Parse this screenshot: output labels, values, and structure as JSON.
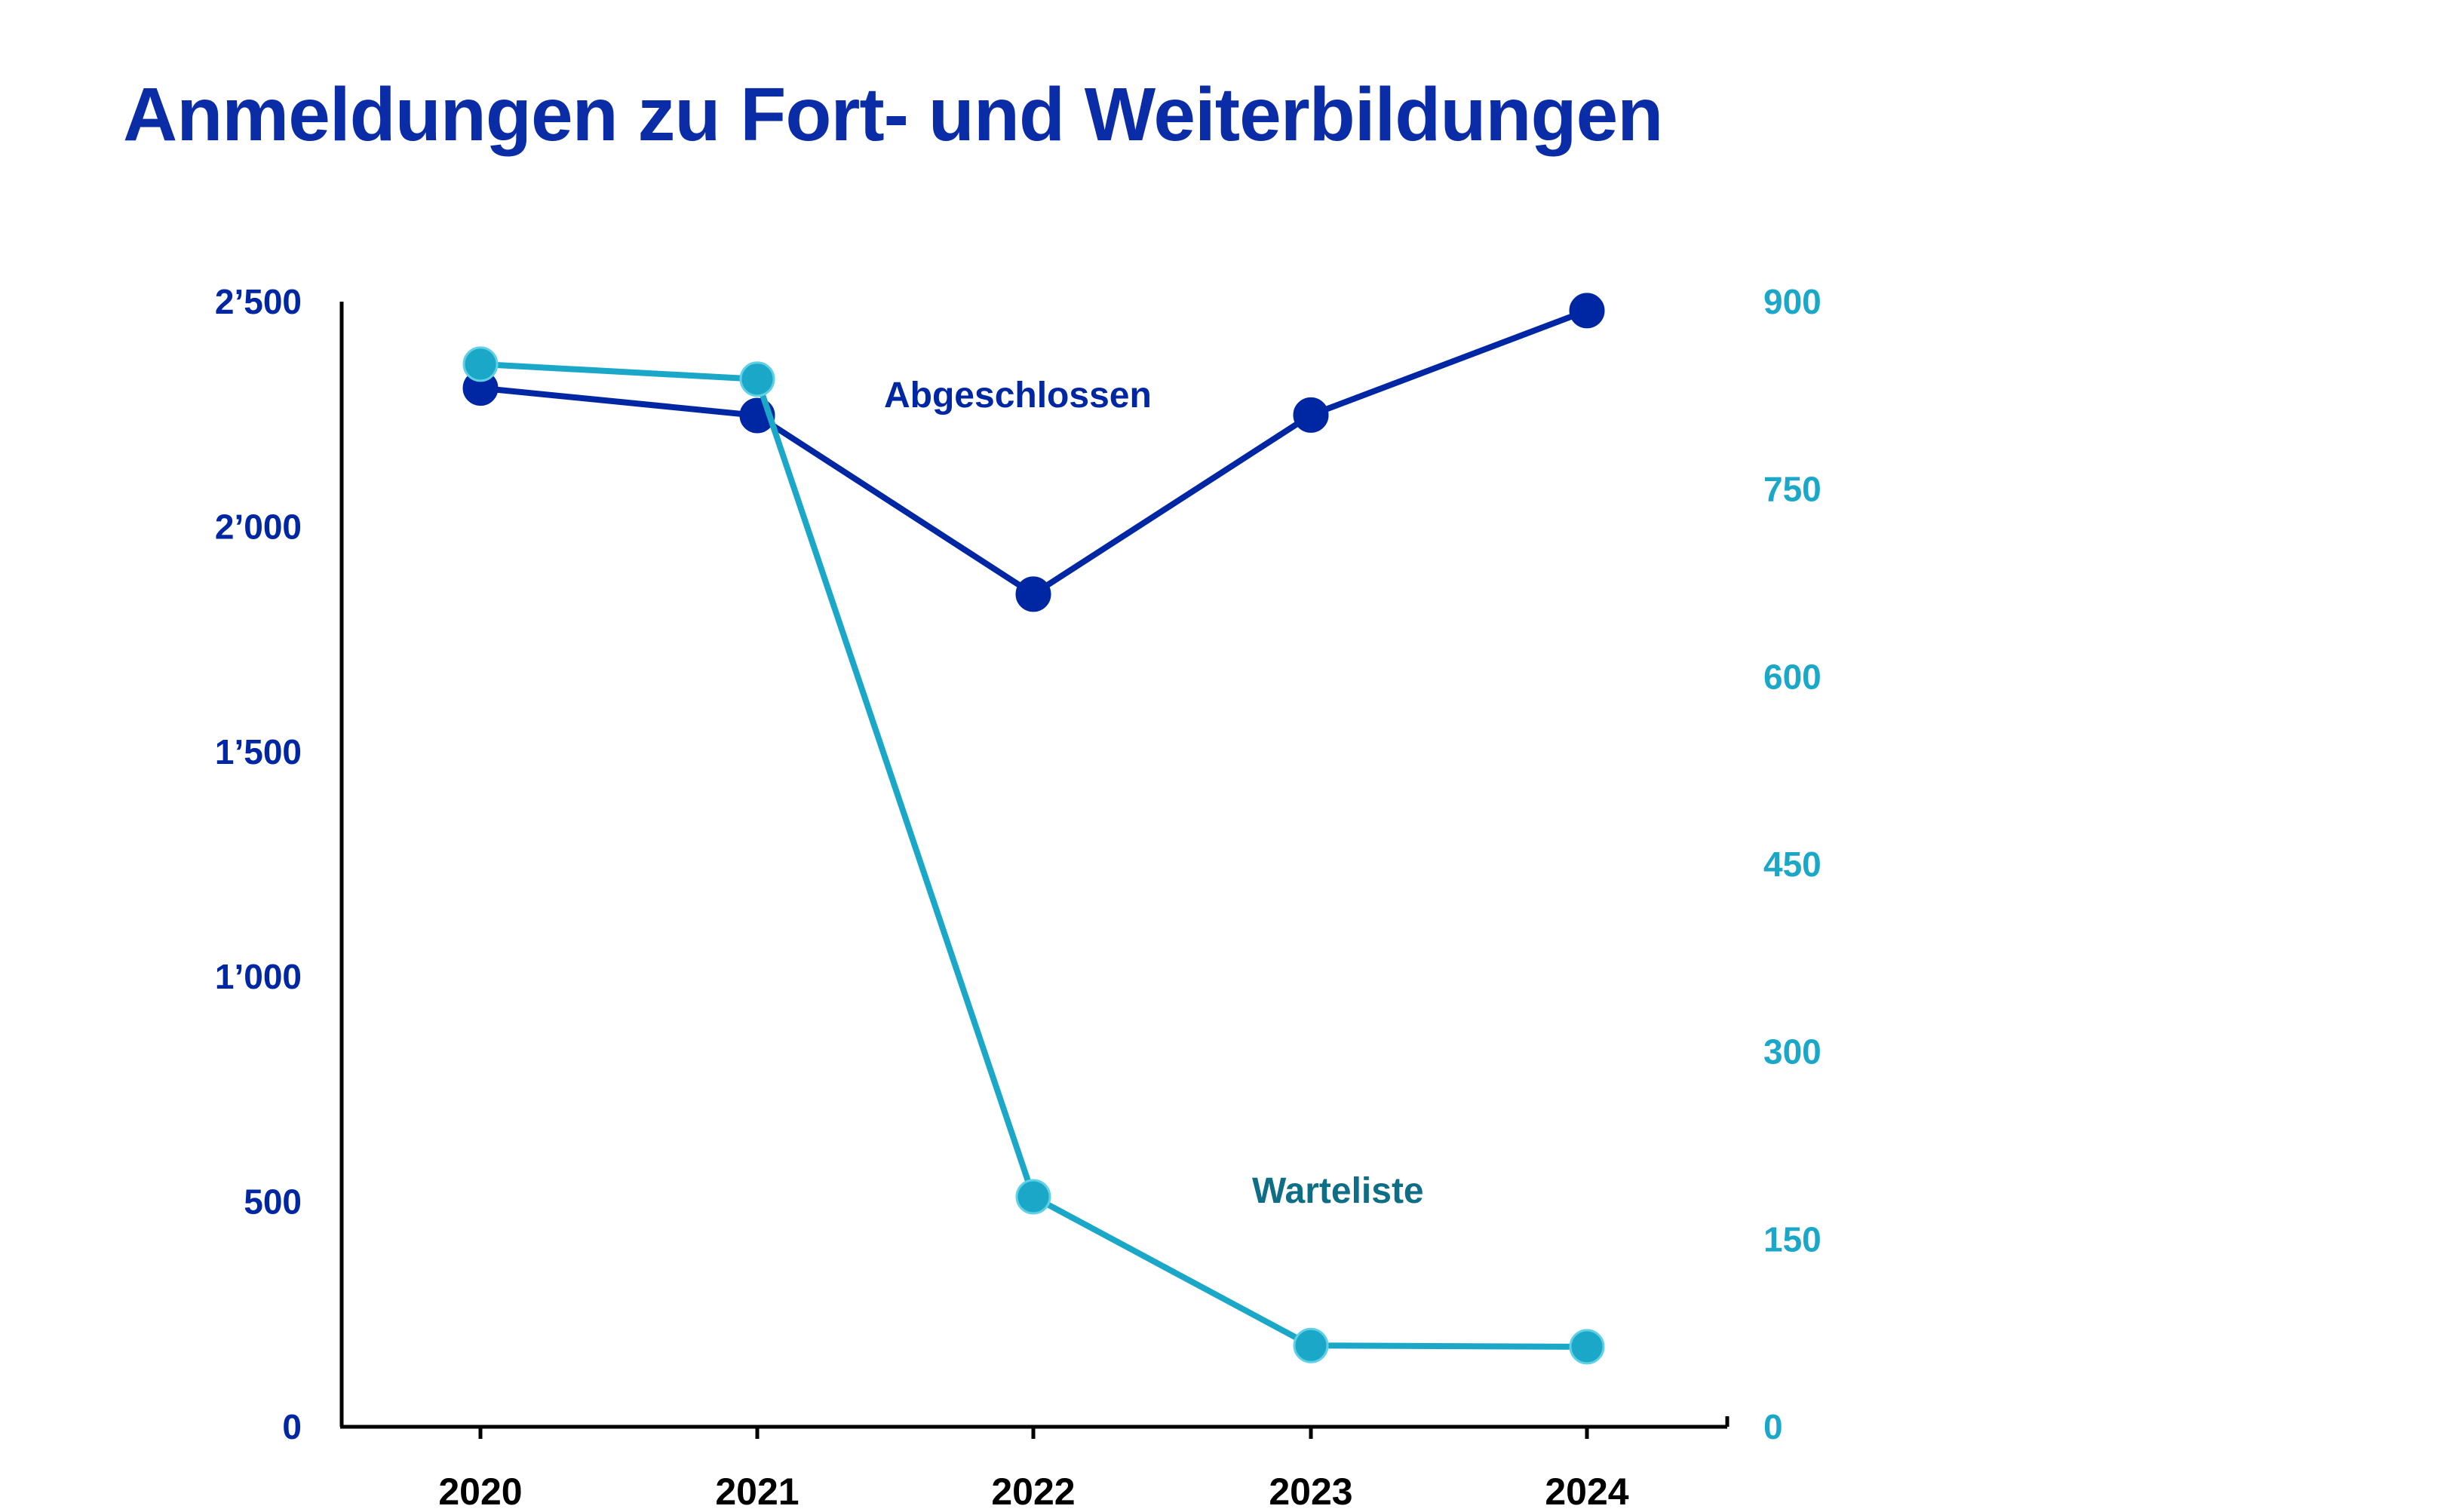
{
  "colors": {
    "abgeschlossen": "#0027a3",
    "warteliste": "#1ba8c8",
    "warteliste_label": "#0e6e86",
    "axis": "#000000"
  },
  "chart_data": {
    "type": "line",
    "title": "Anmeldungen zu Fort- und Weiterbildungen",
    "x": [
      "2020",
      "2021",
      "2022",
      "2023",
      "2024"
    ],
    "series": [
      {
        "name": "Abgeschlossen",
        "axis": "left",
        "values": [
          2308,
          2247,
          1850,
          2248,
          2480
        ]
      },
      {
        "name": "Warteliste",
        "axis": "right",
        "values": [
          850,
          838,
          184,
          65,
          64
        ]
      }
    ],
    "y_left": {
      "range": [
        0,
        2500
      ],
      "ticks": [
        0,
        500,
        1000,
        1500,
        2000,
        2500
      ],
      "tick_labels": [
        "0",
        "500",
        "1’000",
        "1’500",
        "2’000",
        "2’500"
      ]
    },
    "y_right": {
      "range": [
        0,
        900
      ],
      "ticks": [
        0,
        150,
        300,
        450,
        600,
        750,
        900
      ],
      "tick_labels": [
        "0",
        "150",
        "300",
        "450",
        "600",
        "750",
        "900"
      ]
    },
    "xlabel": "",
    "ylabel": "",
    "grid": false,
    "legend": "inline labels"
  }
}
